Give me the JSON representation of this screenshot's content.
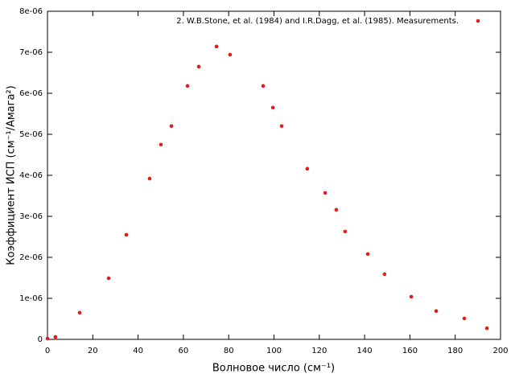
{
  "chart_data": {
    "type": "scatter",
    "x_label": "Волновое число (см⁻¹)",
    "y_label": "Коэффициент ИСП (см⁻¹/Амага²)",
    "xlim": [
      0,
      200
    ],
    "xticks": [
      0,
      20,
      40,
      60,
      80,
      100,
      120,
      140,
      160,
      180,
      200
    ],
    "ylim": [
      0,
      8e-06
    ],
    "yticks": [
      0,
      {
        "value": 1e-06,
        "label": "1e-06"
      },
      {
        "value": 2e-06,
        "label": "2e-06"
      },
      {
        "value": 3e-06,
        "label": "3e-06"
      },
      {
        "value": 4e-06,
        "label": "4e-06"
      },
      {
        "value": 5e-06,
        "label": "5e-06"
      },
      {
        "value": 6e-06,
        "label": "6e-06"
      },
      {
        "value": 7e-06,
        "label": "7e-06"
      },
      {
        "value": 8e-06,
        "label": "8e-06"
      }
    ],
    "legend_position": "top-right",
    "series": [
      {
        "name": "2. W.B.Stone, et al. (1984) and I.R.Dagg, et al. (1985). Measurements.",
        "color": "#e41a1c",
        "x": [
          0,
          3.5,
          14.2,
          27,
          34.8,
          45.1,
          50.1,
          54.7,
          61.8,
          66.8,
          74.6,
          80.6,
          95.2,
          99.5,
          103.4,
          114.7,
          122.6,
          127.5,
          131.4,
          141.4,
          148.8,
          160.6,
          171.6,
          184,
          194
        ],
        "values": [
          2e-08,
          6e-08,
          6.5e-07,
          1.49e-06,
          2.55e-06,
          3.92e-06,
          4.75e-06,
          5.2e-06,
          6.18e-06,
          6.65e-06,
          7.14e-06,
          6.94e-06,
          6.18e-06,
          5.65e-06,
          5.2e-06,
          4.16e-06,
          3.57e-06,
          3.16e-06,
          2.63e-06,
          2.08e-06,
          1.59e-06,
          1.04e-06,
          6.9e-07,
          5.1e-07,
          2.7e-07
        ]
      }
    ]
  }
}
